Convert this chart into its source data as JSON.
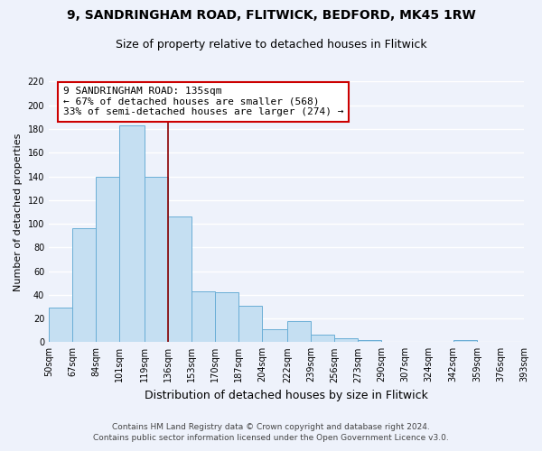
{
  "title1": "9, SANDRINGHAM ROAD, FLITWICK, BEDFORD, MK45 1RW",
  "title2": "Size of property relative to detached houses in Flitwick",
  "xlabel": "Distribution of detached houses by size in Flitwick",
  "ylabel": "Number of detached properties",
  "bar_values": [
    29,
    96,
    140,
    183,
    140,
    106,
    43,
    42,
    31,
    11,
    18,
    6,
    3,
    2,
    0,
    0,
    0,
    2,
    0,
    0
  ],
  "bin_edges": [
    50,
    67,
    84,
    101,
    119,
    136,
    153,
    170,
    187,
    204,
    222,
    239,
    256,
    273,
    290,
    307,
    324,
    342,
    359,
    376,
    393
  ],
  "bin_labels": [
    "50sqm",
    "67sqm",
    "84sqm",
    "101sqm",
    "119sqm",
    "136sqm",
    "153sqm",
    "170sqm",
    "187sqm",
    "204sqm",
    "222sqm",
    "239sqm",
    "256sqm",
    "273sqm",
    "290sqm",
    "307sqm",
    "324sqm",
    "342sqm",
    "359sqm",
    "376sqm",
    "393sqm"
  ],
  "bar_color": "#c5dff2",
  "bar_edge_color": "#6aaed6",
  "vline_x": 136,
  "vline_color": "#8b0000",
  "ylim": [
    0,
    220
  ],
  "yticks": [
    0,
    20,
    40,
    60,
    80,
    100,
    120,
    140,
    160,
    180,
    200,
    220
  ],
  "annotation_title": "9 SANDRINGHAM ROAD: 135sqm",
  "annotation_line1": "← 67% of detached houses are smaller (568)",
  "annotation_line2": "33% of semi-detached houses are larger (274) →",
  "annotation_box_facecolor": "#ffffff",
  "annotation_box_edgecolor": "#cc0000",
  "footnote1": "Contains HM Land Registry data © Crown copyright and database right 2024.",
  "footnote2": "Contains public sector information licensed under the Open Government Licence v3.0.",
  "background_color": "#eef2fb",
  "grid_color": "#ffffff",
  "title1_fontsize": 10,
  "title2_fontsize": 9,
  "ylabel_fontsize": 8,
  "xlabel_fontsize": 9,
  "tick_fontsize": 7,
  "annotation_fontsize": 8,
  "footnote_fontsize": 6.5
}
